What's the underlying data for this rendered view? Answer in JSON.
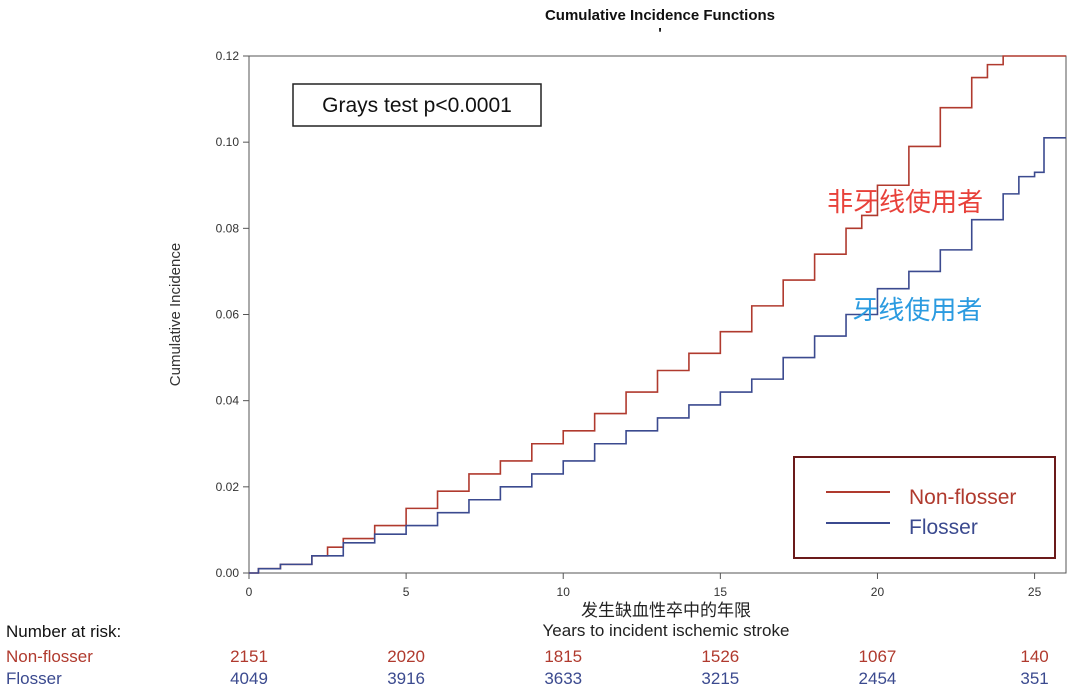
{
  "chart_data": {
    "type": "line",
    "title": "Cumulative Incidence Functions",
    "subtitle": "'",
    "xlabel": "Years to incident ischemic stroke",
    "xlabel_overlay": "发生缺血性卒中的年限",
    "ylabel": "Cumulative Incidence",
    "xlim": [
      0,
      26
    ],
    "ylim": [
      0,
      0.12
    ],
    "x_ticks": [
      0,
      5,
      10,
      15,
      20,
      25
    ],
    "y_ticks": [
      0.0,
      0.02,
      0.04,
      0.06,
      0.08,
      0.1,
      0.12
    ],
    "y_tick_labels": [
      "0.00",
      "0.02",
      "0.04",
      "0.06",
      "0.08",
      "0.10",
      "0.12"
    ],
    "step": true,
    "series": [
      {
        "name": "Non-flosser",
        "color": "#b03a2e",
        "x": [
          0,
          0.3,
          1,
          2,
          2.5,
          3,
          4,
          5,
          6,
          7,
          8,
          9,
          10,
          11,
          12,
          13,
          14,
          15,
          16,
          17,
          18,
          19,
          19.5,
          20,
          21,
          22,
          23,
          23.5,
          24,
          26
        ],
        "y": [
          0,
          0.001,
          0.002,
          0.004,
          0.006,
          0.008,
          0.011,
          0.015,
          0.019,
          0.023,
          0.026,
          0.03,
          0.033,
          0.037,
          0.042,
          0.047,
          0.051,
          0.056,
          0.062,
          0.068,
          0.074,
          0.08,
          0.083,
          0.09,
          0.099,
          0.108,
          0.115,
          0.118,
          0.12,
          0.12
        ]
      },
      {
        "name": "Flosser",
        "color": "#3b4a8f",
        "x": [
          0,
          0.3,
          1,
          2,
          3,
          4,
          5,
          6,
          7,
          8,
          9,
          10,
          11,
          12,
          13,
          14,
          15,
          16,
          17,
          18,
          19,
          20,
          21,
          22,
          23,
          24,
          24.5,
          25,
          25.3,
          26
        ],
        "y": [
          0,
          0.001,
          0.002,
          0.004,
          0.007,
          0.009,
          0.011,
          0.014,
          0.017,
          0.02,
          0.023,
          0.026,
          0.03,
          0.033,
          0.036,
          0.039,
          0.042,
          0.045,
          0.05,
          0.055,
          0.06,
          0.066,
          0.07,
          0.075,
          0.082,
          0.088,
          0.092,
          0.093,
          0.101,
          0.101
        ]
      }
    ],
    "legend": {
      "position": "bottom-right",
      "entries": [
        "Non-flosser",
        "Flosser"
      ]
    },
    "annotations": [
      {
        "text": "Grays test p<0.0001",
        "type": "boxed"
      },
      {
        "text": "非牙线使用者",
        "color": "#e8413a",
        "x": 18.4,
        "y": 0.084
      },
      {
        "text": "牙线使用者",
        "color": "#2b9be0",
        "x": 19.2,
        "y": 0.059
      }
    ],
    "risk_table": {
      "header": "Number at risk:",
      "x": [
        0,
        5,
        10,
        15,
        20,
        25
      ],
      "rows": [
        {
          "label": "Non-flosser",
          "color": "#b03a2e",
          "values": [
            "2151",
            "2020",
            "1815",
            "1526",
            "1067",
            "140"
          ]
        },
        {
          "label": "Flosser",
          "color": "#3b4a8f",
          "values": [
            "4049",
            "3916",
            "3633",
            "3215",
            "2454",
            "351"
          ]
        }
      ]
    }
  }
}
